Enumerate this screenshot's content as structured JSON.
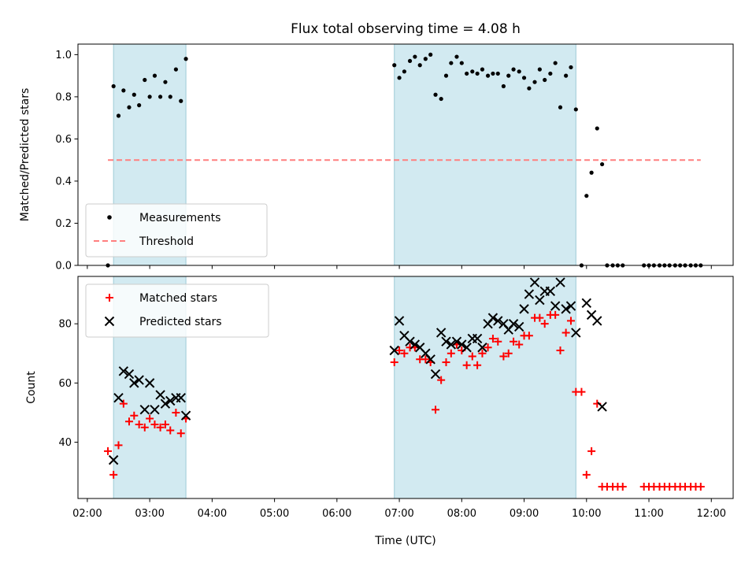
{
  "chart_data": {
    "type": "scatter",
    "title": "Flux total observing time = 4.08 h",
    "xlabel": "Time (UTC)",
    "x_unit": "hours UTC",
    "xlim": [
      1.85,
      12.35
    ],
    "x_ticks": [
      {
        "value": 2,
        "label": "02:00"
      },
      {
        "value": 3,
        "label": "03:00"
      },
      {
        "value": 4,
        "label": "04:00"
      },
      {
        "value": 5,
        "label": "05:00"
      },
      {
        "value": 6,
        "label": "06:00"
      },
      {
        "value": 7,
        "label": "07:00"
      },
      {
        "value": 8,
        "label": "08:00"
      },
      {
        "value": 9,
        "label": "09:00"
      },
      {
        "value": 10,
        "label": "10:00"
      },
      {
        "value": 11,
        "label": "11:00"
      },
      {
        "value": 12,
        "label": "12:00"
      }
    ],
    "shaded_intervals": [
      [
        2.42,
        3.58
      ],
      [
        6.92,
        9.83
      ]
    ],
    "shade_color": "#add8e6",
    "panels": [
      {
        "id": "ratio",
        "ylabel": "Matched/Predicted stars",
        "ylim": [
          0,
          1.05
        ],
        "y_ticks": [
          {
            "value": 0.0,
            "label": "0.0"
          },
          {
            "value": 0.2,
            "label": "0.2"
          },
          {
            "value": 0.4,
            "label": "0.4"
          },
          {
            "value": 0.6,
            "label": "0.6"
          },
          {
            "value": 0.8,
            "label": "0.8"
          },
          {
            "value": 1.0,
            "label": "1.0"
          }
        ],
        "legend_position": "lower-left",
        "series": [
          {
            "name": "Measurements",
            "marker": "dot",
            "color": "#000000",
            "points": [
              [
                2.33,
                0.0
              ],
              [
                2.42,
                0.85
              ],
              [
                2.5,
                0.71
              ],
              [
                2.58,
                0.83
              ],
              [
                2.67,
                0.75
              ],
              [
                2.75,
                0.81
              ],
              [
                2.83,
                0.76
              ],
              [
                2.92,
                0.88
              ],
              [
                3.0,
                0.8
              ],
              [
                3.08,
                0.9
              ],
              [
                3.17,
                0.8
              ],
              [
                3.25,
                0.87
              ],
              [
                3.33,
                0.8
              ],
              [
                3.42,
                0.93
              ],
              [
                3.5,
                0.78
              ],
              [
                3.58,
                0.98
              ],
              [
                6.92,
                0.95
              ],
              [
                7.0,
                0.89
              ],
              [
                7.08,
                0.92
              ],
              [
                7.17,
                0.97
              ],
              [
                7.25,
                0.99
              ],
              [
                7.33,
                0.95
              ],
              [
                7.42,
                0.98
              ],
              [
                7.5,
                1.0
              ],
              [
                7.58,
                0.81
              ],
              [
                7.67,
                0.79
              ],
              [
                7.75,
                0.9
              ],
              [
                7.83,
                0.96
              ],
              [
                7.92,
                0.99
              ],
              [
                8.0,
                0.96
              ],
              [
                8.08,
                0.91
              ],
              [
                8.17,
                0.92
              ],
              [
                8.25,
                0.91
              ],
              [
                8.33,
                0.93
              ],
              [
                8.42,
                0.9
              ],
              [
                8.5,
                0.91
              ],
              [
                8.58,
                0.91
              ],
              [
                8.67,
                0.85
              ],
              [
                8.75,
                0.9
              ],
              [
                8.83,
                0.93
              ],
              [
                8.92,
                0.92
              ],
              [
                9.0,
                0.89
              ],
              [
                9.08,
                0.84
              ],
              [
                9.17,
                0.87
              ],
              [
                9.25,
                0.93
              ],
              [
                9.33,
                0.88
              ],
              [
                9.42,
                0.91
              ],
              [
                9.5,
                0.96
              ],
              [
                9.58,
                0.75
              ],
              [
                9.67,
                0.9
              ],
              [
                9.75,
                0.94
              ],
              [
                9.83,
                0.74
              ],
              [
                9.92,
                0.0
              ],
              [
                10.0,
                0.33
              ],
              [
                10.08,
                0.44
              ],
              [
                10.17,
                0.65
              ],
              [
                10.25,
                0.48
              ],
              [
                10.33,
                0.0
              ],
              [
                10.42,
                0.0
              ],
              [
                10.5,
                0.0
              ],
              [
                10.58,
                0.0
              ],
              [
                10.92,
                0.0
              ],
              [
                11.0,
                0.0
              ],
              [
                11.08,
                0.0
              ],
              [
                11.17,
                0.0
              ],
              [
                11.25,
                0.0
              ],
              [
                11.33,
                0.0
              ],
              [
                11.42,
                0.0
              ],
              [
                11.5,
                0.0
              ],
              [
                11.58,
                0.0
              ],
              [
                11.67,
                0.0
              ],
              [
                11.75,
                0.0
              ],
              [
                11.83,
                0.0
              ]
            ]
          },
          {
            "name": "Threshold",
            "style": "dashed",
            "color": "#ff7f7f",
            "points": [
              [
                2.33,
                0.5
              ],
              [
                11.83,
                0.5
              ]
            ]
          }
        ]
      },
      {
        "id": "counts",
        "ylabel": "Count",
        "ylim": [
          21,
          96
        ],
        "y_ticks": [
          {
            "value": 40,
            "label": "40"
          },
          {
            "value": 60,
            "label": "60"
          },
          {
            "value": 80,
            "label": "80"
          }
        ],
        "legend_position": "upper-left",
        "series": [
          {
            "name": "Matched stars",
            "marker": "plus",
            "color": "#ff0000",
            "points": [
              [
                2.33,
                37
              ],
              [
                2.42,
                29
              ],
              [
                2.5,
                39
              ],
              [
                2.58,
                53
              ],
              [
                2.67,
                47
              ],
              [
                2.75,
                49
              ],
              [
                2.83,
                46
              ],
              [
                2.92,
                45
              ],
              [
                3.0,
                48
              ],
              [
                3.08,
                46
              ],
              [
                3.17,
                45
              ],
              [
                3.25,
                46
              ],
              [
                3.33,
                44
              ],
              [
                3.42,
                50
              ],
              [
                3.5,
                43
              ],
              [
                3.58,
                48
              ],
              [
                6.92,
                67
              ],
              [
                7.0,
                71
              ],
              [
                7.08,
                70
              ],
              [
                7.17,
                72
              ],
              [
                7.25,
                72
              ],
              [
                7.33,
                68
              ],
              [
                7.42,
                68
              ],
              [
                7.5,
                67
              ],
              [
                7.58,
                51
              ],
              [
                7.67,
                61
              ],
              [
                7.75,
                67
              ],
              [
                7.83,
                70
              ],
              [
                7.92,
                73
              ],
              [
                8.0,
                71
              ],
              [
                8.08,
                66
              ],
              [
                8.17,
                69
              ],
              [
                8.25,
                66
              ],
              [
                8.33,
                70
              ],
              [
                8.42,
                72
              ],
              [
                8.5,
                75
              ],
              [
                8.58,
                74
              ],
              [
                8.67,
                69
              ],
              [
                8.75,
                70
              ],
              [
                8.83,
                74
              ],
              [
                8.92,
                73
              ],
              [
                9.0,
                76
              ],
              [
                9.08,
                76
              ],
              [
                9.17,
                82
              ],
              [
                9.25,
                82
              ],
              [
                9.33,
                80
              ],
              [
                9.42,
                83
              ],
              [
                9.5,
                83
              ],
              [
                9.58,
                71
              ],
              [
                9.67,
                77
              ],
              [
                9.75,
                81
              ],
              [
                9.83,
                57
              ],
              [
                9.92,
                57
              ],
              [
                10.0,
                29
              ],
              [
                10.08,
                37
              ],
              [
                10.17,
                53
              ],
              [
                10.25,
                25
              ],
              [
                10.33,
                25
              ],
              [
                10.42,
                25
              ],
              [
                10.5,
                25
              ],
              [
                10.58,
                25
              ],
              [
                10.92,
                25
              ],
              [
                11.0,
                25
              ],
              [
                11.08,
                25
              ],
              [
                11.17,
                25
              ],
              [
                11.25,
                25
              ],
              [
                11.33,
                25
              ],
              [
                11.42,
                25
              ],
              [
                11.5,
                25
              ],
              [
                11.58,
                25
              ],
              [
                11.67,
                25
              ],
              [
                11.75,
                25
              ],
              [
                11.83,
                25
              ]
            ]
          },
          {
            "name": "Predicted stars",
            "marker": "x",
            "color": "#000000",
            "points": [
              [
                2.42,
                34
              ],
              [
                2.5,
                55
              ],
              [
                2.58,
                64
              ],
              [
                2.67,
                63
              ],
              [
                2.75,
                60
              ],
              [
                2.83,
                61
              ],
              [
                2.92,
                51
              ],
              [
                3.0,
                60
              ],
              [
                3.08,
                51
              ],
              [
                3.17,
                56
              ],
              [
                3.25,
                53
              ],
              [
                3.33,
                54
              ],
              [
                3.42,
                55
              ],
              [
                3.5,
                55
              ],
              [
                3.58,
                49
              ],
              [
                6.92,
                71
              ],
              [
                7.0,
                81
              ],
              [
                7.08,
                76
              ],
              [
                7.17,
                74
              ],
              [
                7.25,
                73
              ],
              [
                7.33,
                72
              ],
              [
                7.42,
                70
              ],
              [
                7.5,
                68
              ],
              [
                7.58,
                63
              ],
              [
                7.67,
                77
              ],
              [
                7.75,
                74
              ],
              [
                7.83,
                73
              ],
              [
                7.92,
                74
              ],
              [
                8.0,
                73
              ],
              [
                8.08,
                72
              ],
              [
                8.17,
                75
              ],
              [
                8.25,
                75
              ],
              [
                8.33,
                72
              ],
              [
                8.42,
                80
              ],
              [
                8.5,
                82
              ],
              [
                8.58,
                81
              ],
              [
                8.67,
                80
              ],
              [
                8.75,
                78
              ],
              [
                8.83,
                80
              ],
              [
                8.92,
                79
              ],
              [
                9.0,
                85
              ],
              [
                9.08,
                90
              ],
              [
                9.17,
                94
              ],
              [
                9.25,
                88
              ],
              [
                9.33,
                91
              ],
              [
                9.42,
                91
              ],
              [
                9.5,
                86
              ],
              [
                9.58,
                94
              ],
              [
                9.67,
                85
              ],
              [
                9.75,
                86
              ],
              [
                9.83,
                77
              ],
              [
                10.0,
                87
              ],
              [
                10.08,
                83
              ],
              [
                10.17,
                81
              ],
              [
                10.25,
                52
              ]
            ]
          }
        ]
      }
    ]
  }
}
